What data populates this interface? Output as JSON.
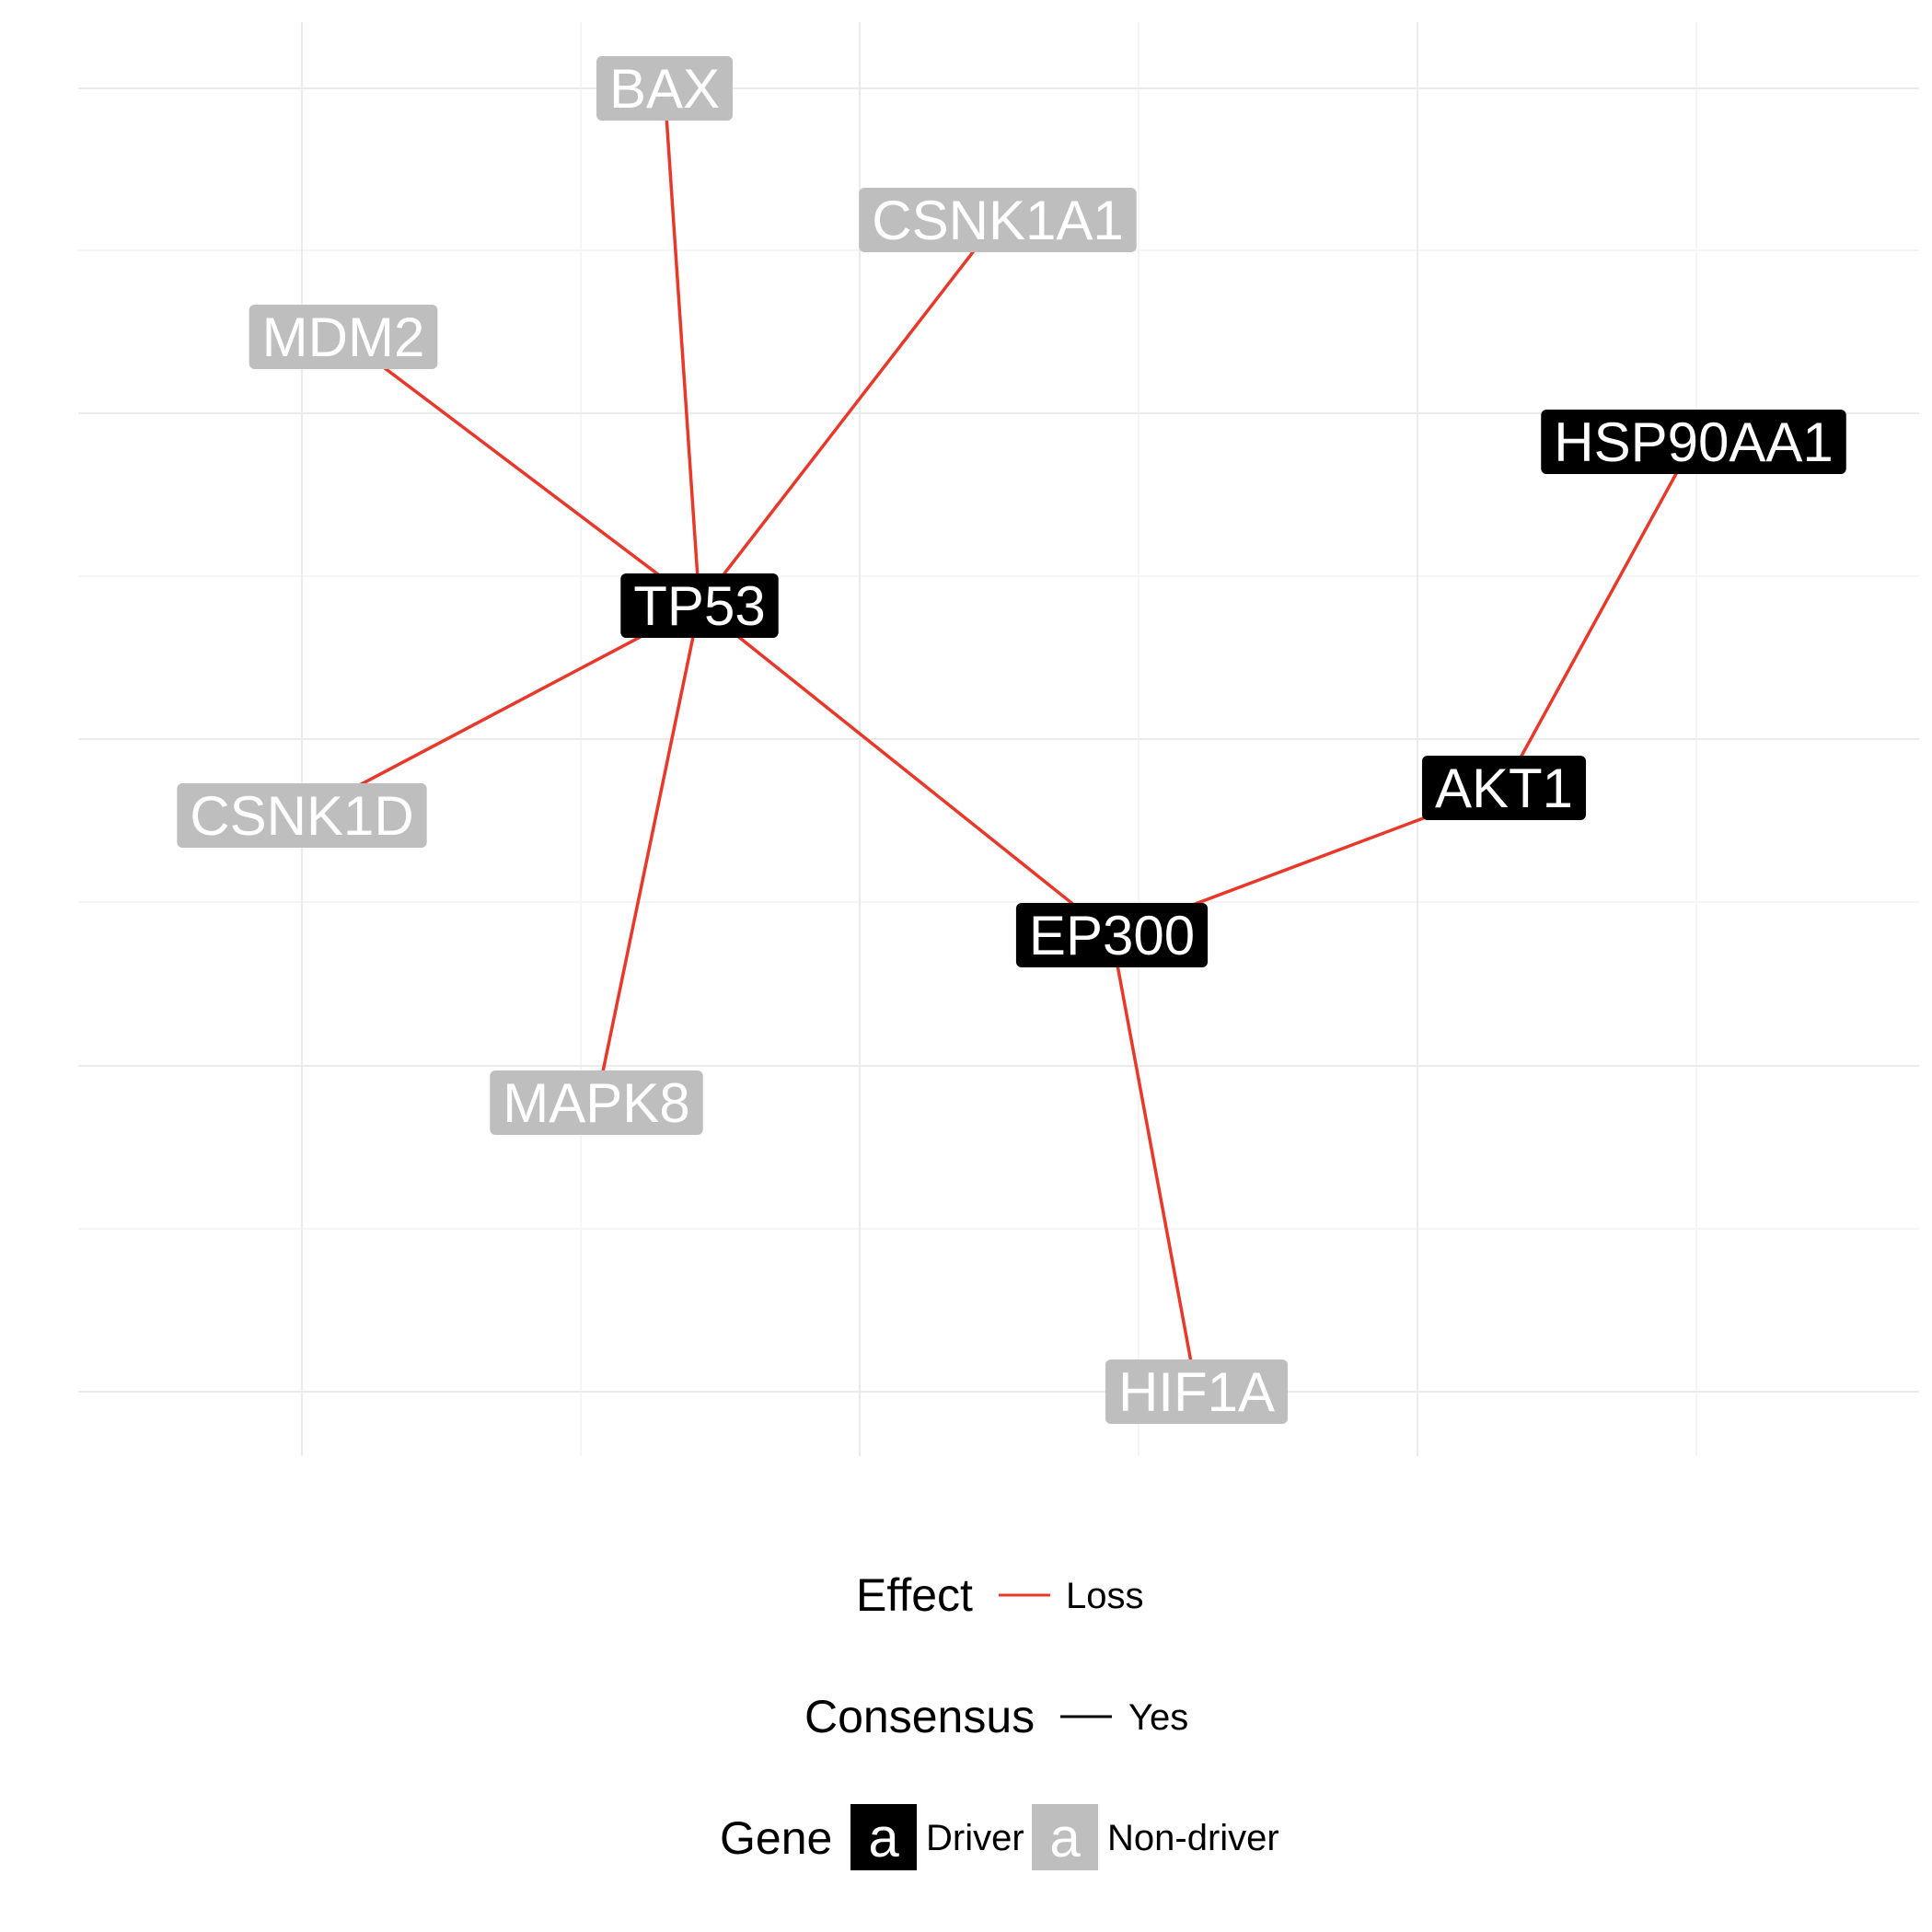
{
  "diagram": {
    "nodes": [
      {
        "id": "BAX",
        "label": "BAX",
        "type": "non-driver"
      },
      {
        "id": "CSNK1A1",
        "label": "CSNK1A1",
        "type": "non-driver"
      },
      {
        "id": "MDM2",
        "label": "MDM2",
        "type": "non-driver"
      },
      {
        "id": "HSP90AA1",
        "label": "HSP90AA1",
        "type": "driver"
      },
      {
        "id": "TP53",
        "label": "TP53",
        "type": "driver"
      },
      {
        "id": "AKT1",
        "label": "AKT1",
        "type": "driver"
      },
      {
        "id": "CSNK1D",
        "label": "CSNK1D",
        "type": "non-driver"
      },
      {
        "id": "EP300",
        "label": "EP300",
        "type": "driver"
      },
      {
        "id": "MAPK8",
        "label": "MAPK8",
        "type": "non-driver"
      },
      {
        "id": "HIF1A",
        "label": "HIF1A",
        "type": "non-driver"
      }
    ],
    "edges": [
      {
        "from": "TP53",
        "to": "BAX",
        "effect": "Loss",
        "consensus": "Yes"
      },
      {
        "from": "TP53",
        "to": "CSNK1A1",
        "effect": "Loss",
        "consensus": "Yes"
      },
      {
        "from": "TP53",
        "to": "MDM2",
        "effect": "Loss",
        "consensus": "Yes"
      },
      {
        "from": "TP53",
        "to": "CSNK1D",
        "effect": "Loss",
        "consensus": "Yes"
      },
      {
        "from": "TP53",
        "to": "MAPK8",
        "effect": "Loss",
        "consensus": "Yes"
      },
      {
        "from": "TP53",
        "to": "EP300",
        "effect": "Loss",
        "consensus": "Yes"
      },
      {
        "from": "EP300",
        "to": "AKT1",
        "effect": "Loss",
        "consensus": "Yes"
      },
      {
        "from": "EP300",
        "to": "HIF1A",
        "effect": "Loss",
        "consensus": "Yes"
      },
      {
        "from": "AKT1",
        "to": "HSP90AA1",
        "effect": "Loss",
        "consensus": "Yes"
      }
    ]
  },
  "legend": {
    "effect": {
      "title": "Effect",
      "item": "Loss"
    },
    "consensus": {
      "title": "Consensus",
      "item": "Yes"
    },
    "gene": {
      "title": "Gene",
      "glyph": "a",
      "driver": "Driver",
      "non_driver": "Non-driver"
    }
  },
  "colors": {
    "edge_loss": "#e8382a",
    "driver_fill": "#000000",
    "driver_text": "#ffffff",
    "non_driver_fill": "#bebebe",
    "non_driver_text": "#ffffff",
    "grid_major": "#ebebeb",
    "grid_minor": "#f5f5f5",
    "consensus_line": "#000000"
  }
}
